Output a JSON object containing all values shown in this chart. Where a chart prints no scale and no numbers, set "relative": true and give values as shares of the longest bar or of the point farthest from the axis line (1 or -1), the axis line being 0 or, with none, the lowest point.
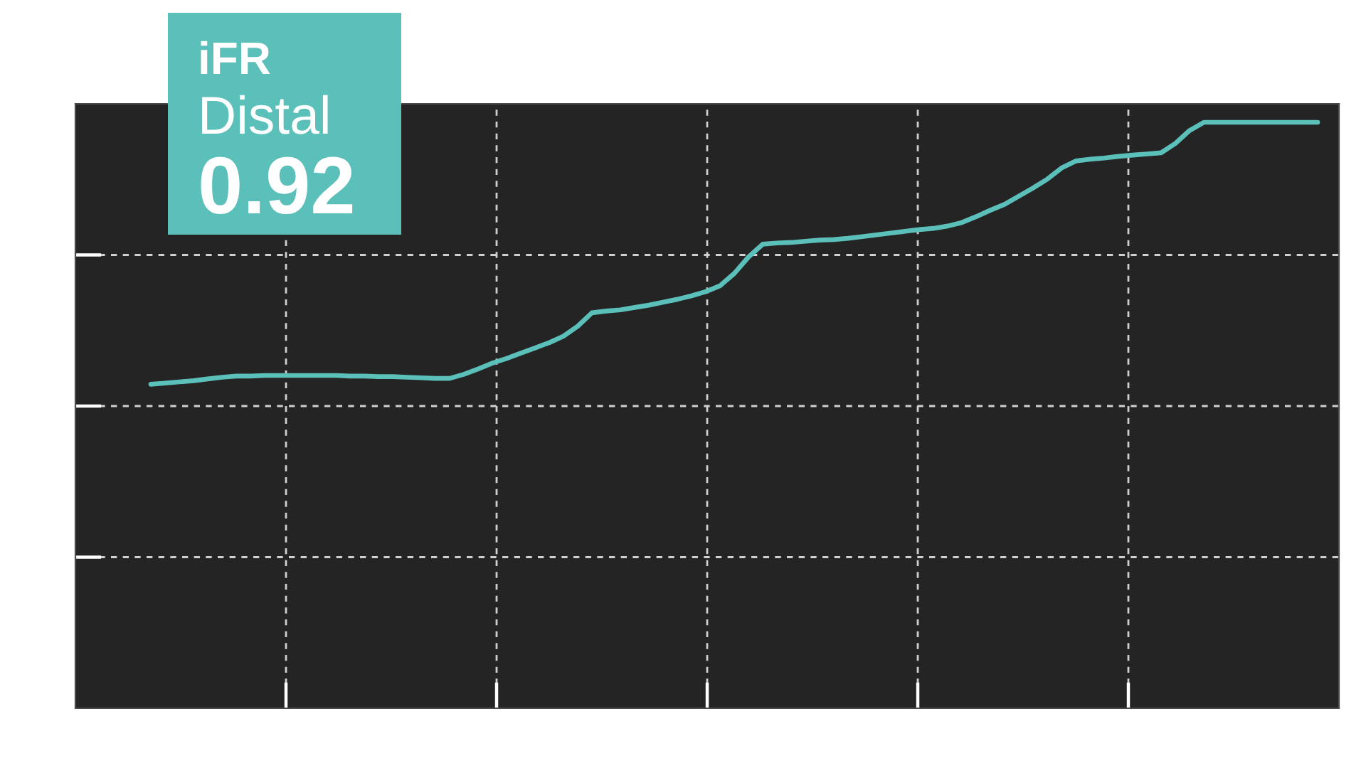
{
  "chart_data": {
    "type": "line",
    "relative": true,
    "grid": true,
    "annotations": [
      "iFR",
      "Distal",
      "0.92"
    ],
    "categories": [
      null,
      null,
      null,
      null,
      null,
      null,
      null,
      null,
      null,
      null,
      null,
      null,
      null,
      null,
      null,
      null,
      null,
      null,
      null,
      null,
      null,
      null,
      null,
      null,
      null,
      null,
      null,
      null,
      null,
      null,
      null,
      null,
      null,
      null,
      null,
      null,
      null,
      null,
      null,
      null,
      null,
      null,
      null,
      null,
      null,
      null,
      null,
      null,
      null,
      null,
      null,
      null,
      null,
      null,
      null,
      null,
      null,
      null,
      null,
      null,
      null,
      null,
      null,
      null,
      null,
      null,
      null,
      null,
      null,
      null,
      null,
      null,
      null,
      null,
      null,
      null,
      null,
      null,
      null,
      null,
      null,
      null,
      null
    ],
    "series": [
      {
        "color": "#5bbfba",
        "values": [
          0.553,
          0.555,
          0.557,
          0.559,
          0.562,
          0.565,
          0.567,
          0.567,
          0.568,
          0.568,
          0.568,
          0.568,
          0.568,
          0.568,
          0.567,
          0.567,
          0.566,
          0.566,
          0.565,
          0.564,
          0.563,
          0.563,
          0.57,
          0.579,
          0.589,
          0.597,
          0.606,
          0.615,
          0.624,
          0.635,
          0.652,
          0.675,
          0.678,
          0.68,
          0.684,
          0.688,
          0.693,
          0.698,
          0.704,
          0.711,
          0.721,
          0.742,
          0.77,
          0.792,
          0.794,
          0.795,
          0.797,
          0.799,
          0.8,
          0.802,
          0.805,
          0.808,
          0.811,
          0.814,
          0.817,
          0.819,
          0.823,
          0.829,
          0.839,
          0.85,
          0.86,
          0.874,
          0.888,
          0.903,
          0.922,
          0.934,
          0.937,
          0.939,
          0.942,
          0.944,
          0.946,
          0.948,
          0.964,
          0.986,
          1,
          1,
          1,
          1,
          1,
          1,
          1,
          1,
          1
        ]
      }
    ]
  }
}
